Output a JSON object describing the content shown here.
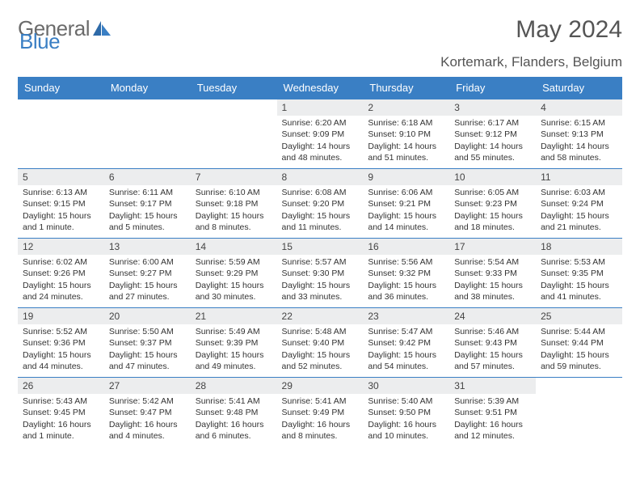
{
  "brand": {
    "word1": "General",
    "word2": "Blue"
  },
  "title": "May 2024",
  "location": "Kortemark, Flanders, Belgium",
  "colors": {
    "header_bg": "#3a7fc4",
    "header_text": "#ffffff",
    "daynum_bg": "#ecedee",
    "border": "#3a7fc4",
    "logo_gray": "#6b6b6b",
    "logo_blue": "#3a7fc4"
  },
  "typography": {
    "title_fontsize": 30,
    "location_fontsize": 17,
    "dow_fontsize": 13,
    "daynum_fontsize": 12,
    "body_fontsize": 10.5
  },
  "days_of_week": [
    "Sunday",
    "Monday",
    "Tuesday",
    "Wednesday",
    "Thursday",
    "Friday",
    "Saturday"
  ],
  "weeks": [
    [
      null,
      null,
      null,
      {
        "n": "1",
        "sr": "Sunrise: 6:20 AM",
        "ss": "Sunset: 9:09 PM",
        "dl": "Daylight: 14 hours and 48 minutes."
      },
      {
        "n": "2",
        "sr": "Sunrise: 6:18 AM",
        "ss": "Sunset: 9:10 PM",
        "dl": "Daylight: 14 hours and 51 minutes."
      },
      {
        "n": "3",
        "sr": "Sunrise: 6:17 AM",
        "ss": "Sunset: 9:12 PM",
        "dl": "Daylight: 14 hours and 55 minutes."
      },
      {
        "n": "4",
        "sr": "Sunrise: 6:15 AM",
        "ss": "Sunset: 9:13 PM",
        "dl": "Daylight: 14 hours and 58 minutes."
      }
    ],
    [
      {
        "n": "5",
        "sr": "Sunrise: 6:13 AM",
        "ss": "Sunset: 9:15 PM",
        "dl": "Daylight: 15 hours and 1 minute."
      },
      {
        "n": "6",
        "sr": "Sunrise: 6:11 AM",
        "ss": "Sunset: 9:17 PM",
        "dl": "Daylight: 15 hours and 5 minutes."
      },
      {
        "n": "7",
        "sr": "Sunrise: 6:10 AM",
        "ss": "Sunset: 9:18 PM",
        "dl": "Daylight: 15 hours and 8 minutes."
      },
      {
        "n": "8",
        "sr": "Sunrise: 6:08 AM",
        "ss": "Sunset: 9:20 PM",
        "dl": "Daylight: 15 hours and 11 minutes."
      },
      {
        "n": "9",
        "sr": "Sunrise: 6:06 AM",
        "ss": "Sunset: 9:21 PM",
        "dl": "Daylight: 15 hours and 14 minutes."
      },
      {
        "n": "10",
        "sr": "Sunrise: 6:05 AM",
        "ss": "Sunset: 9:23 PM",
        "dl": "Daylight: 15 hours and 18 minutes."
      },
      {
        "n": "11",
        "sr": "Sunrise: 6:03 AM",
        "ss": "Sunset: 9:24 PM",
        "dl": "Daylight: 15 hours and 21 minutes."
      }
    ],
    [
      {
        "n": "12",
        "sr": "Sunrise: 6:02 AM",
        "ss": "Sunset: 9:26 PM",
        "dl": "Daylight: 15 hours and 24 minutes."
      },
      {
        "n": "13",
        "sr": "Sunrise: 6:00 AM",
        "ss": "Sunset: 9:27 PM",
        "dl": "Daylight: 15 hours and 27 minutes."
      },
      {
        "n": "14",
        "sr": "Sunrise: 5:59 AM",
        "ss": "Sunset: 9:29 PM",
        "dl": "Daylight: 15 hours and 30 minutes."
      },
      {
        "n": "15",
        "sr": "Sunrise: 5:57 AM",
        "ss": "Sunset: 9:30 PM",
        "dl": "Daylight: 15 hours and 33 minutes."
      },
      {
        "n": "16",
        "sr": "Sunrise: 5:56 AM",
        "ss": "Sunset: 9:32 PM",
        "dl": "Daylight: 15 hours and 36 minutes."
      },
      {
        "n": "17",
        "sr": "Sunrise: 5:54 AM",
        "ss": "Sunset: 9:33 PM",
        "dl": "Daylight: 15 hours and 38 minutes."
      },
      {
        "n": "18",
        "sr": "Sunrise: 5:53 AM",
        "ss": "Sunset: 9:35 PM",
        "dl": "Daylight: 15 hours and 41 minutes."
      }
    ],
    [
      {
        "n": "19",
        "sr": "Sunrise: 5:52 AM",
        "ss": "Sunset: 9:36 PM",
        "dl": "Daylight: 15 hours and 44 minutes."
      },
      {
        "n": "20",
        "sr": "Sunrise: 5:50 AM",
        "ss": "Sunset: 9:37 PM",
        "dl": "Daylight: 15 hours and 47 minutes."
      },
      {
        "n": "21",
        "sr": "Sunrise: 5:49 AM",
        "ss": "Sunset: 9:39 PM",
        "dl": "Daylight: 15 hours and 49 minutes."
      },
      {
        "n": "22",
        "sr": "Sunrise: 5:48 AM",
        "ss": "Sunset: 9:40 PM",
        "dl": "Daylight: 15 hours and 52 minutes."
      },
      {
        "n": "23",
        "sr": "Sunrise: 5:47 AM",
        "ss": "Sunset: 9:42 PM",
        "dl": "Daylight: 15 hours and 54 minutes."
      },
      {
        "n": "24",
        "sr": "Sunrise: 5:46 AM",
        "ss": "Sunset: 9:43 PM",
        "dl": "Daylight: 15 hours and 57 minutes."
      },
      {
        "n": "25",
        "sr": "Sunrise: 5:44 AM",
        "ss": "Sunset: 9:44 PM",
        "dl": "Daylight: 15 hours and 59 minutes."
      }
    ],
    [
      {
        "n": "26",
        "sr": "Sunrise: 5:43 AM",
        "ss": "Sunset: 9:45 PM",
        "dl": "Daylight: 16 hours and 1 minute."
      },
      {
        "n": "27",
        "sr": "Sunrise: 5:42 AM",
        "ss": "Sunset: 9:47 PM",
        "dl": "Daylight: 16 hours and 4 minutes."
      },
      {
        "n": "28",
        "sr": "Sunrise: 5:41 AM",
        "ss": "Sunset: 9:48 PM",
        "dl": "Daylight: 16 hours and 6 minutes."
      },
      {
        "n": "29",
        "sr": "Sunrise: 5:41 AM",
        "ss": "Sunset: 9:49 PM",
        "dl": "Daylight: 16 hours and 8 minutes."
      },
      {
        "n": "30",
        "sr": "Sunrise: 5:40 AM",
        "ss": "Sunset: 9:50 PM",
        "dl": "Daylight: 16 hours and 10 minutes."
      },
      {
        "n": "31",
        "sr": "Sunrise: 5:39 AM",
        "ss": "Sunset: 9:51 PM",
        "dl": "Daylight: 16 hours and 12 minutes."
      },
      null
    ]
  ]
}
